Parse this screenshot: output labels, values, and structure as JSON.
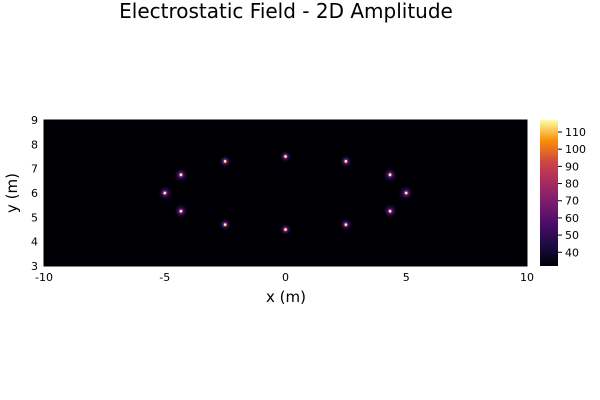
{
  "chart_data": {
    "type": "heatmap",
    "title": "Electrostatic Field - 2D Amplitude",
    "xlabel": "x (m)",
    "ylabel": "y (m)",
    "xlim": [
      -10,
      10
    ],
    "ylim": [
      3,
      9
    ],
    "xticks": [
      -10,
      -5,
      0,
      5,
      10
    ],
    "yticks": [
      3,
      4,
      5,
      6,
      7,
      8,
      9
    ],
    "colormap": "inferno",
    "color_range": [
      32,
      117
    ],
    "colorbar_ticks": [
      40,
      50,
      60,
      70,
      80,
      90,
      100,
      110
    ],
    "grid": false,
    "charges": [
      {
        "x": 5.0,
        "y": 6.0
      },
      {
        "x": 4.33,
        "y": 6.75
      },
      {
        "x": 2.5,
        "y": 7.3
      },
      {
        "x": 0.0,
        "y": 7.5
      },
      {
        "x": -2.5,
        "y": 7.3
      },
      {
        "x": -4.33,
        "y": 6.75
      },
      {
        "x": -5.0,
        "y": 6.0
      },
      {
        "x": -4.33,
        "y": 5.25
      },
      {
        "x": -2.5,
        "y": 4.7
      },
      {
        "x": 0.0,
        "y": 4.5
      },
      {
        "x": 2.5,
        "y": 4.7
      },
      {
        "x": 4.33,
        "y": 5.25
      }
    ]
  }
}
